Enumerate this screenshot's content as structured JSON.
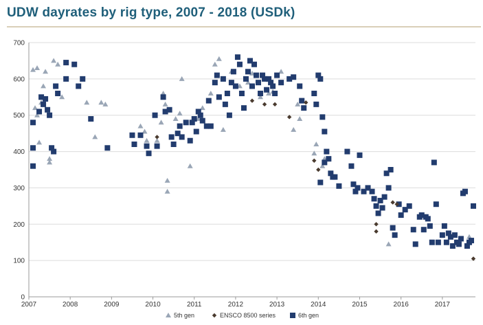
{
  "title": "UDW dayrates by rig type, 2007 - 2018 (USDk)",
  "colors": {
    "title": "#1f5f7a",
    "fifth_gen": "#9aa6b6",
    "ensco": "#4a3b2f",
    "sixth_gen": "#223c6e",
    "grid": "#dcdcdc",
    "axis": "#9a9a9a"
  },
  "chart_data": {
    "type": "scatter",
    "title": "UDW dayrates by rig type, 2007 - 2018 (USDk)",
    "xlabel": "",
    "ylabel": "",
    "xlim": [
      2007,
      2017.8
    ],
    "ylim": [
      0,
      700
    ],
    "x_ticks": [
      2007,
      2008,
      2009,
      2010,
      2011,
      2012,
      2013,
      2014,
      2015,
      2016,
      2017
    ],
    "y_ticks": [
      0,
      100,
      200,
      300,
      400,
      500,
      600,
      700
    ],
    "grid": "horizontal",
    "legend_position": "bottom",
    "series": [
      {
        "name": "5th gen",
        "marker": "triangle",
        "points": [
          [
            2007.1,
            625
          ],
          [
            2007.2,
            630
          ],
          [
            2007.15,
            520
          ],
          [
            2007.2,
            500
          ],
          [
            2007.3,
            535
          ],
          [
            2007.35,
            580
          ],
          [
            2007.25,
            425
          ],
          [
            2007.5,
            380
          ],
          [
            2007.5,
            370
          ],
          [
            2007.6,
            650
          ],
          [
            2007.7,
            640
          ],
          [
            2007.4,
            620
          ],
          [
            2007.8,
            550
          ],
          [
            2008.4,
            535
          ],
          [
            2008.6,
            440
          ],
          [
            2008.75,
            535
          ],
          [
            2008.85,
            530
          ],
          [
            2009.7,
            470
          ],
          [
            2009.8,
            455
          ],
          [
            2009.85,
            430
          ],
          [
            2010.1,
            430
          ],
          [
            2010.2,
            480
          ],
          [
            2010.25,
            560
          ],
          [
            2010.3,
            530
          ],
          [
            2010.35,
            320
          ],
          [
            2010.35,
            290
          ],
          [
            2010.55,
            490
          ],
          [
            2010.65,
            505
          ],
          [
            2010.7,
            600
          ],
          [
            2010.9,
            360
          ],
          [
            2011.1,
            490
          ],
          [
            2011.2,
            520
          ],
          [
            2011.4,
            560
          ],
          [
            2011.5,
            640
          ],
          [
            2011.6,
            655
          ],
          [
            2011.7,
            460
          ],
          [
            2011.9,
            620
          ],
          [
            2012.1,
            580
          ],
          [
            2012.3,
            590
          ],
          [
            2012.4,
            615
          ],
          [
            2012.6,
            550
          ],
          [
            2012.8,
            560
          ],
          [
            2012.9,
            565
          ],
          [
            2013.1,
            620
          ],
          [
            2013.4,
            460
          ],
          [
            2013.5,
            530
          ],
          [
            2013.55,
            490
          ],
          [
            2013.65,
            520
          ],
          [
            2013.9,
            395
          ],
          [
            2013.95,
            420
          ],
          [
            2014.1,
            360
          ],
          [
            2014.15,
            380
          ],
          [
            2015.7,
            145
          ],
          [
            2017.65,
            165
          ]
        ]
      },
      {
        "name": "ENSCO 8500 series",
        "marker": "diamond",
        "points": [
          [
            2010.1,
            440
          ],
          [
            2012.4,
            540
          ],
          [
            2012.7,
            530
          ],
          [
            2012.95,
            530
          ],
          [
            2013.3,
            495
          ],
          [
            2013.7,
            535
          ],
          [
            2013.9,
            375
          ],
          [
            2014.0,
            350
          ],
          [
            2015.4,
            200
          ],
          [
            2015.4,
            180
          ],
          [
            2015.8,
            260
          ],
          [
            2015.9,
            255
          ],
          [
            2017.75,
            105
          ]
        ]
      },
      {
        "name": "6th gen",
        "marker": "square",
        "points": [
          [
            2007.1,
            480
          ],
          [
            2007.1,
            410
          ],
          [
            2007.1,
            360
          ],
          [
            2007.25,
            510
          ],
          [
            2007.3,
            550
          ],
          [
            2007.35,
            530
          ],
          [
            2007.4,
            545
          ],
          [
            2007.45,
            515
          ],
          [
            2007.5,
            500
          ],
          [
            2007.55,
            410
          ],
          [
            2007.6,
            400
          ],
          [
            2007.65,
            580
          ],
          [
            2007.7,
            560
          ],
          [
            2007.9,
            600
          ],
          [
            2007.9,
            645
          ],
          [
            2008.1,
            640
          ],
          [
            2008.2,
            580
          ],
          [
            2008.3,
            600
          ],
          [
            2008.5,
            490
          ],
          [
            2008.9,
            410
          ],
          [
            2009.5,
            445
          ],
          [
            2009.55,
            420
          ],
          [
            2009.7,
            445
          ],
          [
            2009.85,
            415
          ],
          [
            2009.9,
            395
          ],
          [
            2010.05,
            500
          ],
          [
            2010.1,
            415
          ],
          [
            2010.25,
            550
          ],
          [
            2010.3,
            510
          ],
          [
            2010.4,
            515
          ],
          [
            2010.45,
            440
          ],
          [
            2010.5,
            420
          ],
          [
            2010.6,
            450
          ],
          [
            2010.65,
            470
          ],
          [
            2010.7,
            440
          ],
          [
            2010.8,
            480
          ],
          [
            2010.9,
            430
          ],
          [
            2010.95,
            480
          ],
          [
            2011.0,
            490
          ],
          [
            2011.05,
            455
          ],
          [
            2011.1,
            510
          ],
          [
            2011.15,
            500
          ],
          [
            2011.2,
            485
          ],
          [
            2011.3,
            470
          ],
          [
            2011.35,
            540
          ],
          [
            2011.4,
            470
          ],
          [
            2011.5,
            590
          ],
          [
            2011.55,
            610
          ],
          [
            2011.6,
            550
          ],
          [
            2011.7,
            600
          ],
          [
            2011.75,
            530
          ],
          [
            2011.8,
            560
          ],
          [
            2011.85,
            500
          ],
          [
            2011.9,
            590
          ],
          [
            2011.95,
            620
          ],
          [
            2012.0,
            580
          ],
          [
            2012.05,
            660
          ],
          [
            2012.1,
            640
          ],
          [
            2012.15,
            560
          ],
          [
            2012.2,
            520
          ],
          [
            2012.25,
            600
          ],
          [
            2012.3,
            620
          ],
          [
            2012.35,
            650
          ],
          [
            2012.4,
            580
          ],
          [
            2012.45,
            640
          ],
          [
            2012.5,
            610
          ],
          [
            2012.55,
            590
          ],
          [
            2012.6,
            560
          ],
          [
            2012.65,
            610
          ],
          [
            2012.7,
            600
          ],
          [
            2012.75,
            570
          ],
          [
            2012.8,
            600
          ],
          [
            2012.85,
            590
          ],
          [
            2012.9,
            580
          ],
          [
            2012.95,
            560
          ],
          [
            2013.0,
            610
          ],
          [
            2013.1,
            590
          ],
          [
            2013.3,
            600
          ],
          [
            2013.4,
            605
          ],
          [
            2013.55,
            580
          ],
          [
            2013.6,
            540
          ],
          [
            2013.65,
            520
          ],
          [
            2013.9,
            560
          ],
          [
            2013.95,
            530
          ],
          [
            2014.0,
            610
          ],
          [
            2014.05,
            600
          ],
          [
            2014.1,
            495
          ],
          [
            2014.15,
            455
          ],
          [
            2014.2,
            400
          ],
          [
            2014.25,
            380
          ],
          [
            2014.3,
            340
          ],
          [
            2014.35,
            330
          ],
          [
            2014.4,
            330
          ],
          [
            2014.5,
            305
          ],
          [
            2014.05,
            315
          ],
          [
            2014.15,
            370
          ],
          [
            2014.7,
            400
          ],
          [
            2014.8,
            360
          ],
          [
            2014.85,
            310
          ],
          [
            2014.9,
            290
          ],
          [
            2014.95,
            300
          ],
          [
            2015.0,
            390
          ],
          [
            2015.1,
            290
          ],
          [
            2015.2,
            300
          ],
          [
            2015.3,
            290
          ],
          [
            2015.35,
            270
          ],
          [
            2015.4,
            250
          ],
          [
            2015.45,
            230
          ],
          [
            2015.5,
            265
          ],
          [
            2015.55,
            245
          ],
          [
            2015.6,
            275
          ],
          [
            2015.65,
            340
          ],
          [
            2015.7,
            300
          ],
          [
            2015.75,
            350
          ],
          [
            2015.8,
            190
          ],
          [
            2015.85,
            170
          ],
          [
            2015.95,
            255
          ],
          [
            2016.0,
            225
          ],
          [
            2016.1,
            240
          ],
          [
            2016.2,
            250
          ],
          [
            2016.3,
            185
          ],
          [
            2016.35,
            145
          ],
          [
            2016.45,
            220
          ],
          [
            2016.5,
            225
          ],
          [
            2016.55,
            185
          ],
          [
            2016.6,
            220
          ],
          [
            2016.65,
            215
          ],
          [
            2016.7,
            195
          ],
          [
            2016.75,
            150
          ],
          [
            2016.8,
            370
          ],
          [
            2016.85,
            255
          ],
          [
            2016.9,
            150
          ],
          [
            2017.0,
            170
          ],
          [
            2017.05,
            195
          ],
          [
            2017.1,
            150
          ],
          [
            2017.15,
            175
          ],
          [
            2017.2,
            165
          ],
          [
            2017.25,
            140
          ],
          [
            2017.3,
            170
          ],
          [
            2017.35,
            150
          ],
          [
            2017.4,
            145
          ],
          [
            2017.45,
            160
          ],
          [
            2017.5,
            285
          ],
          [
            2017.55,
            290
          ],
          [
            2017.6,
            140
          ],
          [
            2017.65,
            150
          ],
          [
            2017.7,
            155
          ],
          [
            2017.75,
            250
          ]
        ]
      }
    ]
  }
}
